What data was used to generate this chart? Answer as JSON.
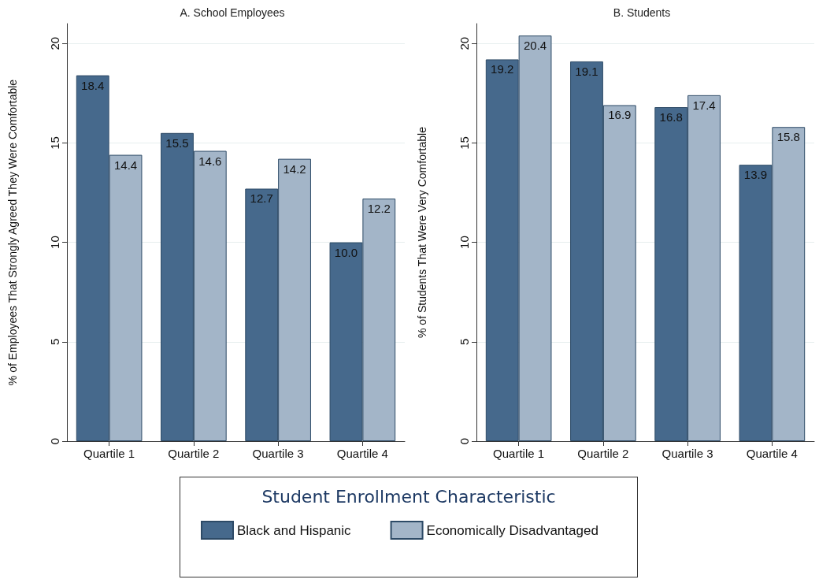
{
  "chart_data": [
    {
      "type": "bar",
      "title": "A. School Employees",
      "ylabel": "% of Employees That Strongly Agreed They Were Comfortable",
      "categories": [
        "Quartile 1",
        "Quartile 2",
        "Quartile 3",
        "Quartile 4"
      ],
      "series": [
        {
          "name": "Black and Hispanic",
          "color": "#46698c",
          "values": [
            18.4,
            15.5,
            12.7,
            10.0
          ],
          "value_labels": [
            "18.4",
            "15.5",
            "12.7",
            "10.0"
          ]
        },
        {
          "name": "Economically Disadvantaged",
          "color": "#a3b5c8",
          "values": [
            14.4,
            14.6,
            14.2,
            12.2
          ]
        }
      ],
      "ylim": [
        0,
        21
      ],
      "yticks": [
        0,
        5,
        10,
        15,
        20
      ],
      "grid": "y",
      "data_labels": true,
      "legend": "bottom",
      "legend_title": "Student Enrollment Characteristic"
    },
    {
      "type": "bar",
      "title": "B. Students",
      "ylabel": "% of Students That Were Very Comfortable",
      "categories": [
        "Quartile 1",
        "Quartile 2",
        "Quartile 3",
        "Quartile 4"
      ],
      "series": [
        {
          "color": "#46698c",
          "values": [
            19.2,
            19.1,
            16.8,
            13.9
          ]
        },
        {
          "color": "#a3b5c8",
          "values": [
            20.4,
            16.9,
            17.4,
            15.8
          ]
        }
      ],
      "ylim": [
        0,
        21
      ],
      "yticks": [
        0,
        5,
        10,
        15,
        20
      ],
      "grid": "y",
      "data_labels": true
    }
  ]
}
